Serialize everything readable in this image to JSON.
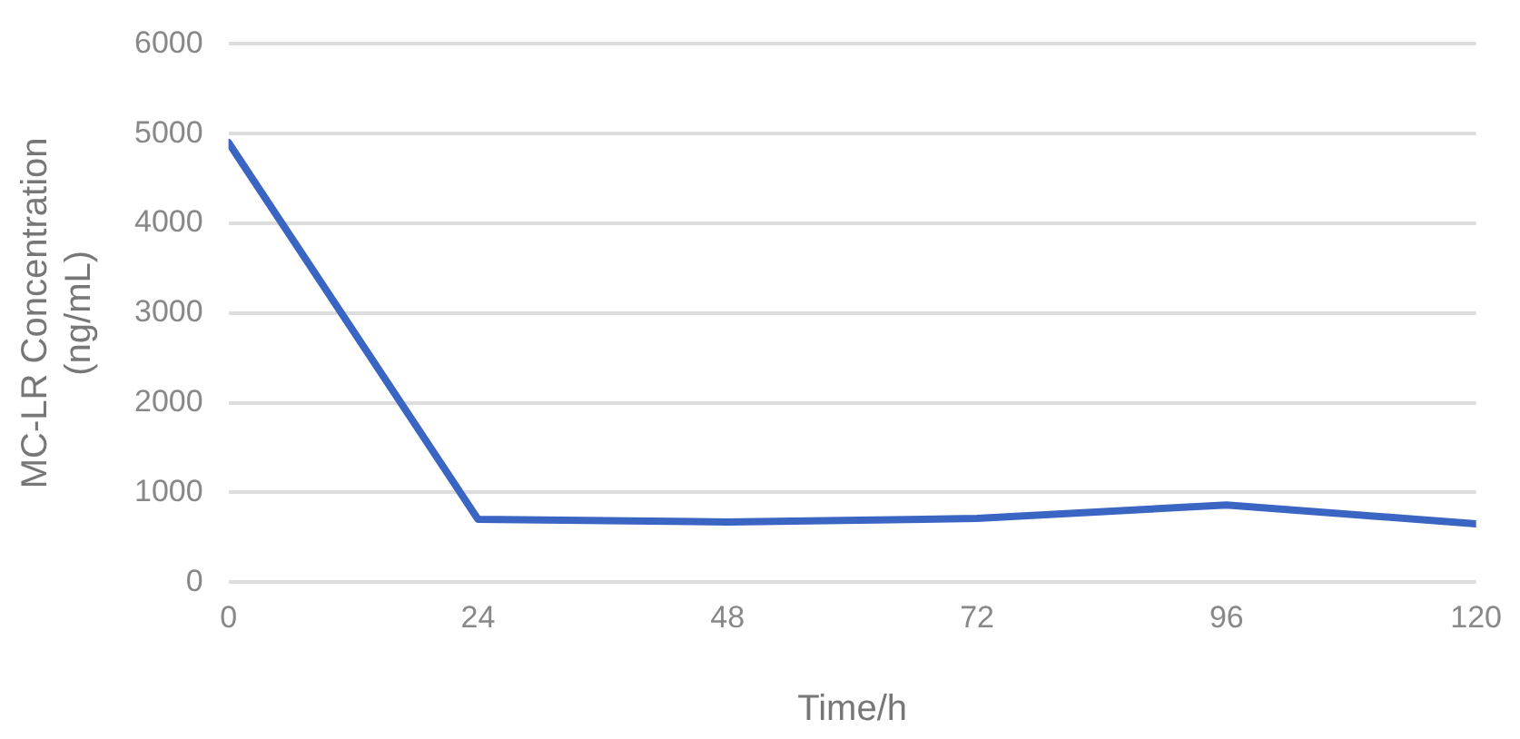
{
  "chart_data": {
    "type": "line",
    "xlabel": "Time/h",
    "ylabel": "MC-LR Concentration\n(ng/mL)",
    "x": [
      0,
      24,
      48,
      72,
      96,
      120
    ],
    "series": [
      {
        "color": "#3a65c2",
        "values": [
          4900,
          700,
          670,
          710,
          860,
          650
        ]
      }
    ],
    "xlim": [
      0,
      120
    ],
    "xticks": [
      0,
      24,
      48,
      72,
      96,
      120
    ],
    "ylim": [
      0,
      6000
    ],
    "yticks": [
      0,
      1000,
      2000,
      3000,
      4000,
      5000,
      6000
    ],
    "grid": "y",
    "legend": false,
    "marker": "none",
    "line_style": "solid"
  }
}
